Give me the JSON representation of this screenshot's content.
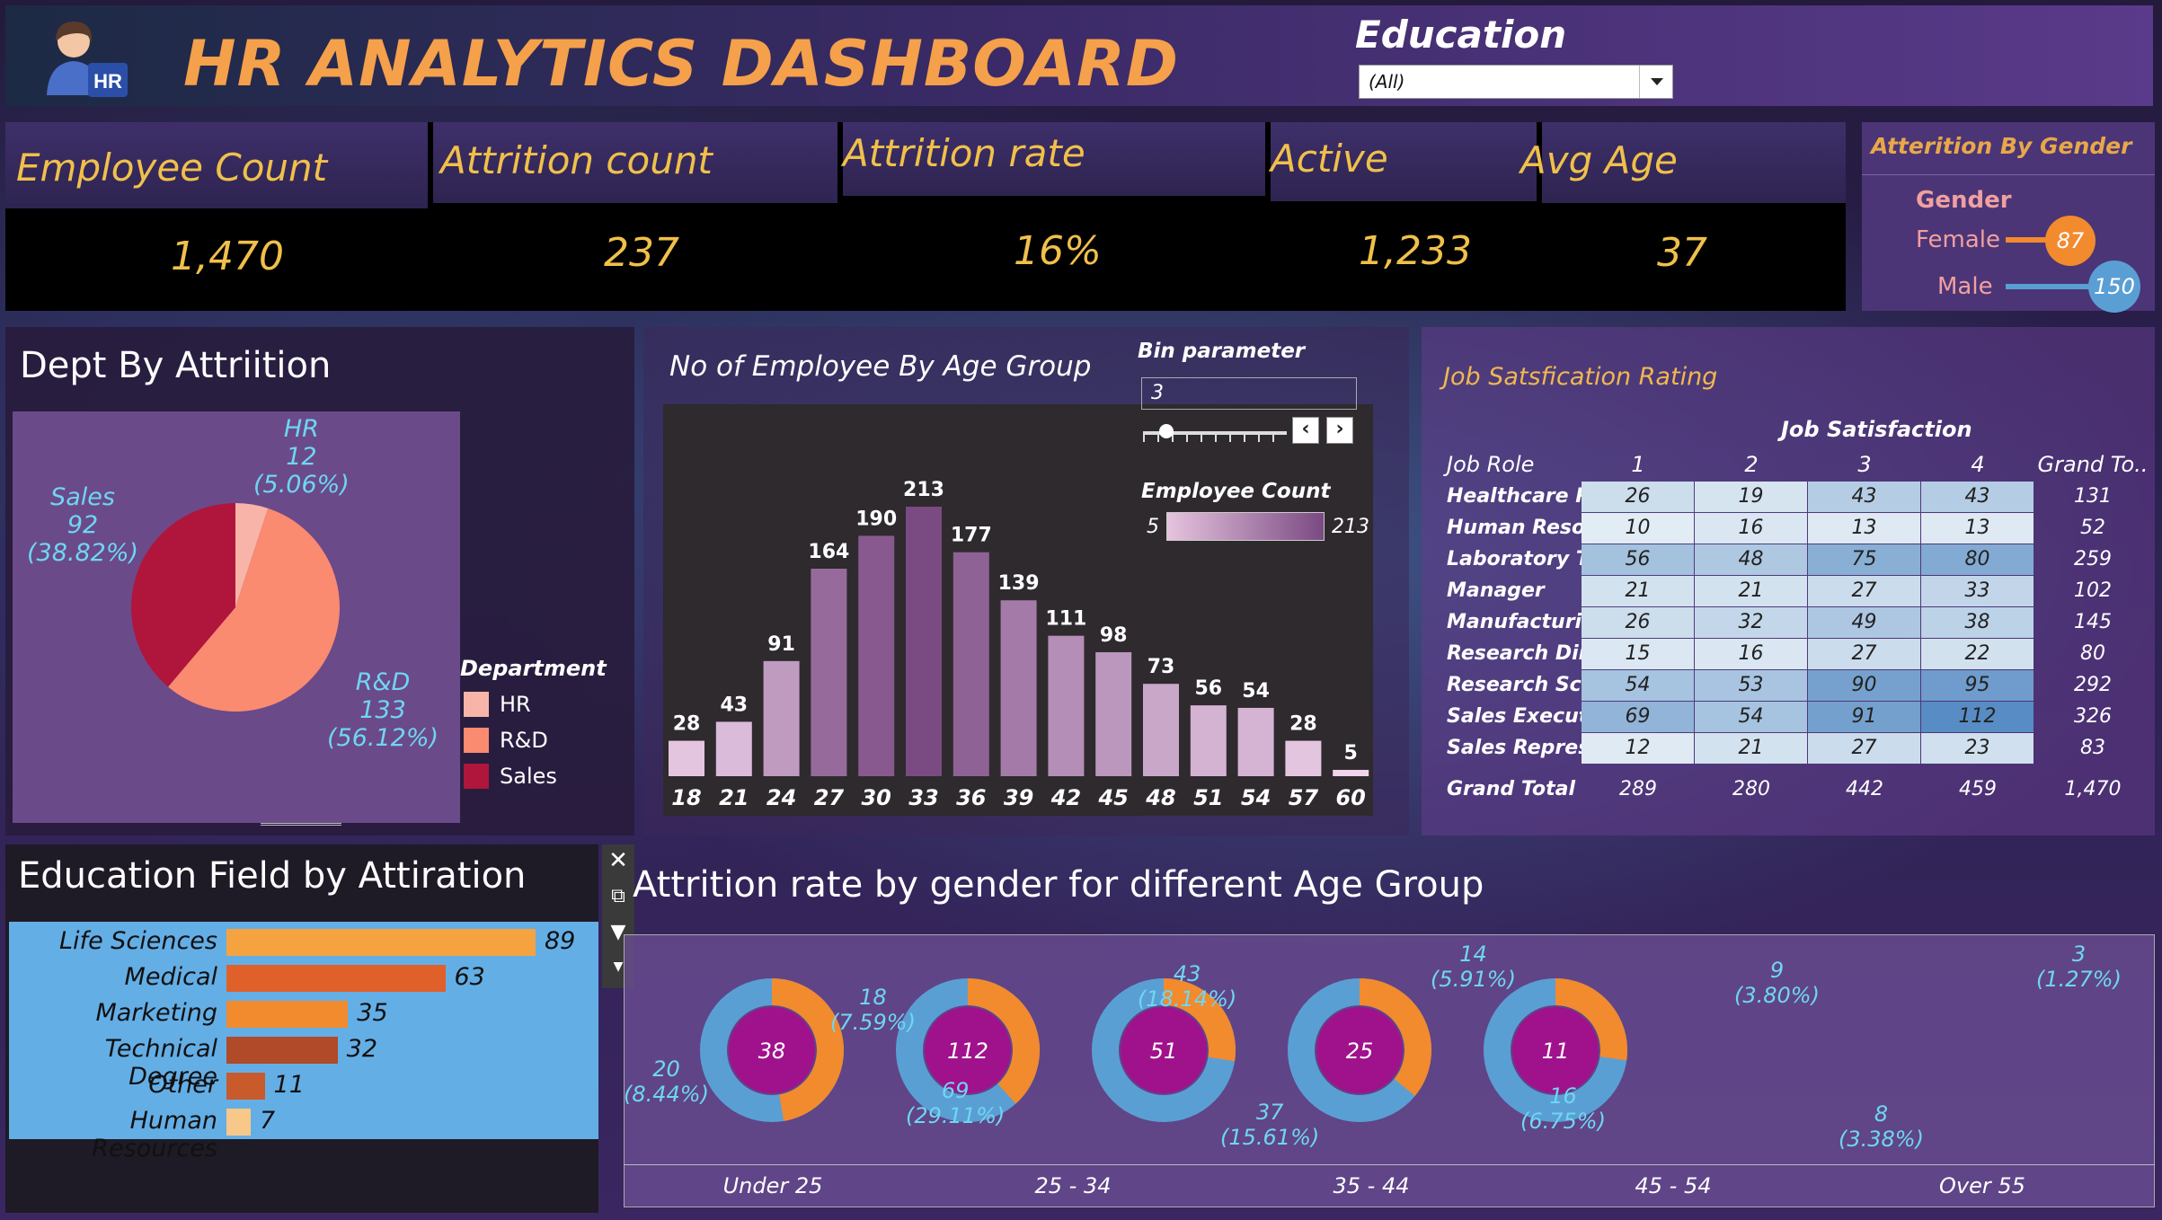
{
  "header": {
    "title": "HR ANALYTICS DASHBOARD",
    "logo_text": "HR",
    "education_filter_label": "Education",
    "education_filter_value": "(All)"
  },
  "kpis": [
    {
      "label": "Employee Count",
      "value": "1,470"
    },
    {
      "label": "Attrition count",
      "value": "237"
    },
    {
      "label": "Attrition rate",
      "value": "16%"
    },
    {
      "label": "Active",
      "value": "1,233"
    },
    {
      "label": "Avg Age",
      "value": "37"
    }
  ],
  "attrition_by_gender": {
    "title": "Atterition By Gender",
    "axis_label": "Gender",
    "rows": [
      {
        "label": "Female",
        "value": 87,
        "color": "#f28a2e"
      },
      {
        "label": "Male",
        "value": 150,
        "color": "#5a9fd4"
      }
    ]
  },
  "dept_by_attrition": {
    "title": "Dept By Attriition",
    "legend_title": "Department",
    "slices": [
      {
        "name": "HR",
        "value": 12,
        "pct": "(5.06%)",
        "color": "#f8b4a8"
      },
      {
        "name": "R&D",
        "value": 133,
        "pct": "(56.12%)",
        "color": "#fa8a70"
      },
      {
        "name": "Sales",
        "value": 92,
        "pct": "(38.82%)",
        "color": "#b0153c"
      }
    ]
  },
  "age_group": {
    "title": "No of Employee By Age Group",
    "bin_parameter_label": "Bin parameter",
    "bin_parameter_value": "3",
    "bin_slider_fraction": 0.12,
    "legend_title": "Employee Count",
    "legend_min": "5",
    "legend_max": "213"
  },
  "job_satisfaction": {
    "title": "Job Satsfication Rating",
    "header": "Job Satisfaction",
    "row_header": "Job Role",
    "columns": [
      "1",
      "2",
      "3",
      "4"
    ],
    "total_header": "Grand To..",
    "rows": [
      {
        "role": "Healthcare R..",
        "values": [
          26,
          19,
          43,
          43
        ],
        "total": "131"
      },
      {
        "role": "Human Reso..",
        "values": [
          10,
          16,
          13,
          13
        ],
        "total": "52"
      },
      {
        "role": "Laboratory T..",
        "values": [
          56,
          48,
          75,
          80
        ],
        "total": "259"
      },
      {
        "role": "Manager",
        "values": [
          21,
          21,
          27,
          33
        ],
        "total": "102"
      },
      {
        "role": "Manufacturi..",
        "values": [
          26,
          32,
          49,
          38
        ],
        "total": "145"
      },
      {
        "role": "Research Dir..",
        "values": [
          15,
          16,
          27,
          22
        ],
        "total": "80"
      },
      {
        "role": "Research Sci..",
        "values": [
          54,
          53,
          90,
          95
        ],
        "total": "292"
      },
      {
        "role": "Sales Executi..",
        "values": [
          69,
          54,
          91,
          112
        ],
        "total": "326"
      },
      {
        "role": "Sales Repres..",
        "values": [
          12,
          21,
          27,
          23
        ],
        "total": "83"
      }
    ],
    "grand_total_label": "Grand Total",
    "grand_totals": [
      "289",
      "280",
      "442",
      "459"
    ],
    "grand_total_all": "1,470"
  },
  "education_field": {
    "title": "Education Field by Attiration",
    "rows": [
      {
        "label": "Life Sciences",
        "value": 89,
        "color": "#f5a340"
      },
      {
        "label": "Medical",
        "value": 63,
        "color": "#e0602a"
      },
      {
        "label": "Marketing",
        "value": 35,
        "color": "#f28a2e"
      },
      {
        "label": "Technical Degree",
        "value": 32,
        "color": "#b04a28"
      },
      {
        "label": "Other",
        "value": 11,
        "color": "#c85a2c"
      },
      {
        "label": "Human Resources",
        "value": 7,
        "color": "#f8c88a"
      }
    ]
  },
  "attrition_by_age_gender": {
    "title": "Attrition rate by gender for different Age Group",
    "groups": [
      {
        "name": "Under 25",
        "total": "38",
        "male": {
          "value": "20",
          "pct": "(8.44%)"
        },
        "female": {
          "value": "18",
          "pct": "(7.59%)"
        }
      },
      {
        "name": "25 - 34",
        "total": "112",
        "male": {
          "value": "69",
          "pct": "(29.11%)"
        },
        "female": {
          "value": "43",
          "pct": "(18.14%)"
        }
      },
      {
        "name": "35 - 44",
        "total": "51",
        "male": {
          "value": "37",
          "pct": "(15.61%)"
        },
        "female": {
          "value": "14",
          "pct": "(5.91%)"
        }
      },
      {
        "name": "45 - 54",
        "total": "25",
        "male": {
          "value": "16",
          "pct": "(6.75%)"
        },
        "female": {
          "value": "9",
          "pct": "(3.80%)"
        }
      },
      {
        "name": "Over 55",
        "total": "11",
        "male": {
          "value": "8",
          "pct": "(3.38%)"
        },
        "female": {
          "value": "3",
          "pct": "(1.27%)"
        }
      }
    ]
  },
  "chart_data": [
    {
      "type": "bar",
      "title": "No of Employee By Age Group",
      "categories": [
        "18",
        "21",
        "24",
        "27",
        "30",
        "33",
        "36",
        "39",
        "42",
        "45",
        "48",
        "51",
        "54",
        "57",
        "60"
      ],
      "values": [
        28,
        43,
        91,
        164,
        190,
        213,
        177,
        139,
        111,
        98,
        73,
        56,
        54,
        28,
        5
      ],
      "color_min": "#f0d4ec",
      "color_max": "#7a4a82"
    },
    {
      "type": "pie",
      "title": "Dept By Attriition",
      "categories": [
        "HR",
        "R&D",
        "Sales"
      ],
      "values": [
        12,
        133,
        92
      ]
    },
    {
      "type": "bar",
      "title": "Education Field by Attiration",
      "categories": [
        "Life Sciences",
        "Medical",
        "Marketing",
        "Technical Degree",
        "Other",
        "Human Resources"
      ],
      "values": [
        89,
        63,
        35,
        32,
        11,
        7
      ]
    },
    {
      "type": "pie",
      "title": "Attrition rate by gender for different Age Group",
      "categories": [
        "Under 25",
        "25 - 34",
        "35 - 44",
        "45 - 54",
        "Over 55"
      ],
      "series": [
        {
          "values": [
            20,
            69,
            37,
            16,
            8
          ]
        },
        {
          "values": [
            18,
            43,
            14,
            9,
            3
          ]
        }
      ]
    }
  ]
}
